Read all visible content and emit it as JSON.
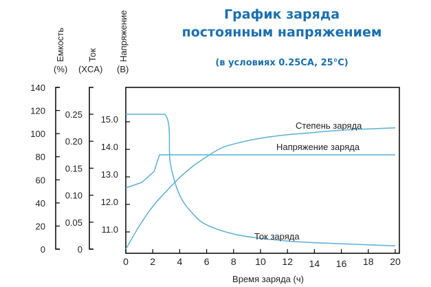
{
  "header": {
    "title_line1": "График заряда",
    "title_line2": "постоянным напряжением",
    "subtitle": "(в условиях 0.25CA, 25°C)"
  },
  "axes": {
    "capacity": {
      "label": "Емкость",
      "unit": "(%)"
    },
    "current": {
      "label": "Ток",
      "unit": "(XCA)"
    },
    "voltage": {
      "label": "Напряжение",
      "unit": "(B)"
    },
    "x": {
      "label": "Время заряда (ч)"
    }
  },
  "annotations": {
    "capacity_curve": "Степень заряда",
    "voltage_curve": "Напряжение заряда",
    "current_curve": "Ток заряда"
  },
  "colors": {
    "title": "#1a6fae",
    "curve": "#5aaed6",
    "axis": "#000000"
  },
  "chart_data": {
    "type": "line",
    "title": "График заряда постоянным напряжением",
    "subtitle": "(в условиях 0.25CA, 25°C)",
    "xlabel": "Время заряда (ч)",
    "xlim": [
      0,
      20
    ],
    "x_ticks": [
      0,
      2,
      4,
      6,
      8,
      10,
      12,
      14,
      16,
      18,
      20
    ],
    "y_axes": [
      {
        "name": "Емкость",
        "unit": "%",
        "ylim": [
          0,
          140
        ],
        "ticks": [
          0,
          20,
          40,
          60,
          80,
          100,
          120,
          140
        ]
      },
      {
        "name": "Ток",
        "unit": "XCA",
        "ylim": [
          0,
          0.25
        ],
        "ticks": [
          0,
          0.05,
          0.1,
          0.15,
          0.2,
          0.25
        ]
      },
      {
        "name": "Напряжение",
        "unit": "B",
        "ticks": [
          11.0,
          12.0,
          13.0,
          14.0,
          15.0
        ]
      }
    ],
    "series": [
      {
        "name": "Степень заряда",
        "axis": "Емкость",
        "x": [
          0,
          1,
          2,
          3,
          4,
          5,
          6,
          7,
          8,
          10,
          12,
          14,
          16,
          18,
          20
        ],
        "values": [
          0,
          20,
          37,
          50,
          62,
          72,
          80,
          87,
          91,
          96,
          99,
          101,
          103,
          104,
          105
        ]
      },
      {
        "name": "Напряжение заряда",
        "axis": "Напряжение",
        "x": [
          0,
          1.2,
          2.1,
          2.5,
          4,
          8,
          12,
          16,
          20
        ],
        "values": [
          12.6,
          12.8,
          13.2,
          13.8,
          13.8,
          13.8,
          13.8,
          13.8,
          13.8
        ]
      },
      {
        "name": "Ток заряда",
        "axis": "Ток",
        "x": [
          0,
          2.9,
          3.3,
          4,
          5,
          6,
          8,
          10,
          12,
          14,
          16,
          18,
          20
        ],
        "values": [
          0.25,
          0.25,
          0.16,
          0.1,
          0.065,
          0.045,
          0.028,
          0.02,
          0.015,
          0.012,
          0.01,
          0.008,
          0.006
        ]
      }
    ]
  }
}
